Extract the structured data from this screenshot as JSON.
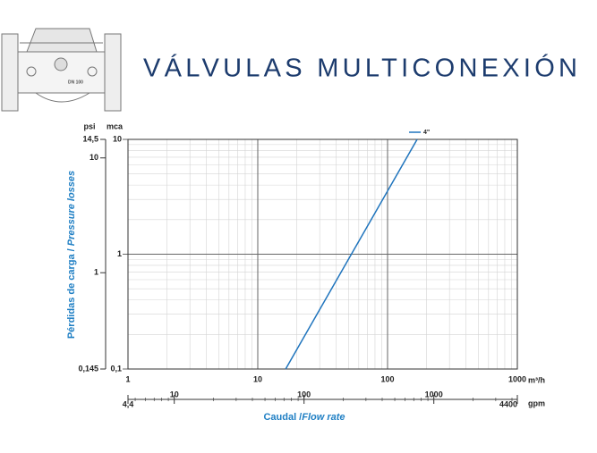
{
  "header": {
    "title": "VÁLVULAS MULTICONEXIÓN",
    "badge": "DN 100"
  },
  "chart_data": {
    "type": "line",
    "x_label": [
      "Caudal /",
      "Flow rate"
    ],
    "y_label": [
      "Pérdidas de carga / ",
      "Pressure losses"
    ],
    "x_unit": "m³/h",
    "x2_unit": "gpm",
    "y_unit": "mca",
    "y2_unit": "psi",
    "xscale": "log",
    "yscale": "log",
    "grid": true,
    "minor_grid": true,
    "legend": "top",
    "xlim": [
      1,
      1000
    ],
    "xticks": [
      1,
      10,
      100,
      1000
    ],
    "ylim": [
      0.1,
      10
    ],
    "yticks": [
      {
        "value": 0.1,
        "label": "0,1"
      },
      1,
      10
    ],
    "x2lim": [
      4.4,
      4400
    ],
    "x2ticks": [
      {
        "value": 4.4,
        "label": "4,4"
      },
      10,
      100,
      1000,
      4400
    ],
    "y2lim": [
      0.145,
      14.5
    ],
    "y2ticks": [
      {
        "value": 0.145,
        "label": "0,145"
      },
      1,
      10,
      {
        "value": 14.5,
        "label": "14,5"
      }
    ],
    "series": [
      {
        "name": "4\"",
        "color": "#1f74bd",
        "x": [
          16.4,
          169
        ],
        "values": [
          0.1,
          10
        ]
      }
    ]
  }
}
